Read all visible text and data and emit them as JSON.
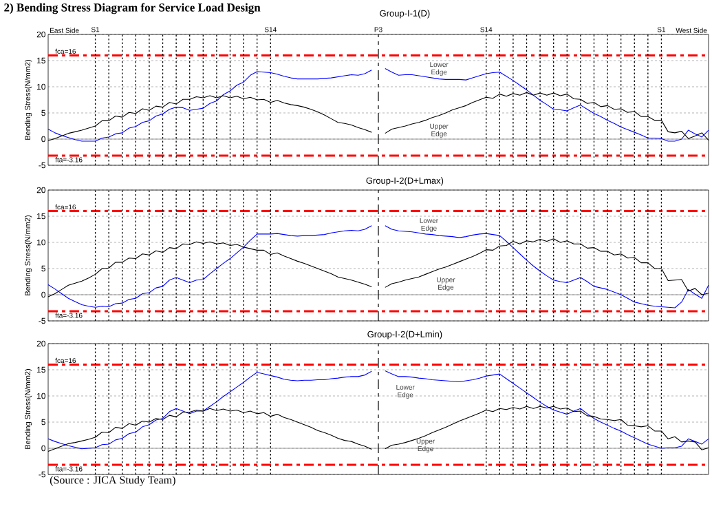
{
  "chart_data": [
    {
      "type": "line",
      "title": "2) Bending Stress Diagram for Service Load Design",
      "subtitle": "Group-I-1(D)",
      "ylabel": "Bending Stress(N/mm2)",
      "ylim": [
        -5,
        20
      ],
      "yticks": [
        -5,
        0,
        5,
        10,
        15,
        20
      ],
      "grid": true,
      "categories": [
        null,
        null,
        null,
        null,
        null,
        null,
        null,
        "S1",
        null,
        null,
        null,
        null,
        null,
        null,
        null,
        null,
        null,
        null,
        null,
        null,
        null,
        null,
        null,
        null,
        null,
        null,
        null,
        null,
        null,
        null,
        null,
        null,
        null,
        "S14",
        null,
        null,
        null,
        null,
        null,
        null,
        null,
        null,
        null,
        null,
        null,
        null,
        null,
        null,
        null,
        "P3",
        null,
        null,
        null,
        null,
        null,
        null,
        null,
        null,
        null,
        null,
        null,
        null,
        null,
        null,
        null,
        "S14",
        null,
        null,
        null,
        null,
        null,
        null,
        null,
        null,
        null,
        null,
        null,
        null,
        null,
        null,
        null,
        null,
        null,
        null,
        null,
        null,
        null,
        null,
        null,
        null,
        null,
        "S1",
        null,
        null,
        null,
        null,
        null,
        null,
        null
      ],
      "annotations": [
        "East Side",
        "West Side"
      ],
      "series": [
        {
          "name": "Lower Edge",
          "color": "#0000ff",
          "values": [
            1.9,
            1.2,
            0.7,
            0.3,
            -0.1,
            -0.4,
            -0.4,
            -0.4,
            0.2,
            0.4,
            1.0,
            1.2,
            2.1,
            2.4,
            3.2,
            3.5,
            4.4,
            4.8,
            5.7,
            6.1,
            6.0,
            5.5,
            5.7,
            5.9,
            6.8,
            7.3,
            8.5,
            9.2,
            10.3,
            10.9,
            12.2,
            12.9,
            12.8,
            12.7,
            12.4,
            12.0,
            11.7,
            11.5,
            11.5,
            11.5,
            11.5,
            11.6,
            11.7,
            11.9,
            12.1,
            12.3,
            12.2,
            12.5,
            13.2,
            null,
            13.5,
            12.8,
            12.2,
            12.3,
            12.3,
            12.1,
            11.9,
            11.7,
            11.5,
            11.4,
            11.4,
            11.4,
            11.3,
            11.7,
            12.1,
            12.5,
            12.7,
            12.8,
            12.0,
            11.2,
            10.3,
            9.4,
            8.4,
            7.4,
            6.6,
            5.7,
            5.6,
            5.4,
            6.0,
            6.5,
            5.7,
            4.9,
            4.3,
            3.6,
            3.0,
            2.3,
            1.8,
            1.3,
            0.8,
            0.2,
            0.2,
            0.1,
            -0.4,
            -0.4,
            0.0,
            1.7,
            1.0,
            0.4,
            1.7
          ]
        },
        {
          "name": "Upper Edge",
          "color": "#000000",
          "values": [
            -0.3,
            0.1,
            0.6,
            1.1,
            1.4,
            1.7,
            2.1,
            2.5,
            3.5,
            3.5,
            4.4,
            4.2,
            5.1,
            4.9,
            5.8,
            5.5,
            6.3,
            6.1,
            7.0,
            6.7,
            7.6,
            7.6,
            8.1,
            7.9,
            8.3,
            7.9,
            8.3,
            7.9,
            8.2,
            7.7,
            8.0,
            7.5,
            7.6,
            7.0,
            7.4,
            6.9,
            6.6,
            6.4,
            6.1,
            5.7,
            5.2,
            4.6,
            3.9,
            3.2,
            3.0,
            2.7,
            2.2,
            1.8,
            1.3,
            null,
            1.1,
            1.9,
            2.2,
            2.5,
            2.9,
            3.2,
            3.6,
            4.1,
            4.5,
            5.0,
            5.6,
            6.0,
            6.4,
            7.0,
            7.5,
            8.0,
            7.8,
            8.6,
            8.2,
            8.7,
            8.4,
            8.9,
            8.4,
            8.8,
            8.4,
            8.8,
            8.3,
            8.6,
            7.7,
            7.6,
            6.8,
            7.0,
            6.2,
            6.4,
            5.7,
            5.8,
            5.1,
            5.3,
            4.3,
            4.3,
            3.6,
            3.6,
            1.4,
            1.2,
            1.5,
            0.1,
            0.6,
            1.2,
            -0.2
          ]
        }
      ],
      "ref_lines": [
        {
          "axis": "y",
          "value": 16,
          "label": "fca=16",
          "color": "#ff0000",
          "line_style": "dashed"
        },
        {
          "axis": "y",
          "value": -3.16,
          "label": "fta=-3.16",
          "color": "#ff0000",
          "line_style": "dashed"
        },
        {
          "axis": "y",
          "value": 0,
          "color": "#808080",
          "line_style": "solid"
        }
      ]
    },
    {
      "type": "line",
      "title": "Group-I-2(D+Lmax)",
      "ylabel": "Bending Stress(N/mm2)",
      "ylim": [
        -5,
        20
      ],
      "yticks": [
        -5,
        0,
        5,
        10,
        15,
        20
      ],
      "tick_labels": "y",
      "grid": true,
      "categories": [
        null,
        null,
        null,
        null,
        null,
        null,
        null,
        null,
        null,
        null,
        null,
        null,
        null,
        null,
        null,
        null,
        null,
        null,
        null,
        null,
        null,
        null,
        null,
        null,
        null,
        null,
        null,
        null,
        null,
        null,
        null,
        null,
        null,
        null,
        null,
        null,
        null,
        null,
        null,
        null,
        null,
        null,
        null,
        null,
        null,
        null,
        null,
        null,
        null,
        null,
        null,
        null,
        null,
        null,
        null,
        null,
        null,
        null,
        null,
        null,
        null,
        null,
        null,
        null,
        null,
        null,
        null,
        null,
        null,
        null,
        null,
        null,
        null,
        null,
        null,
        null,
        null,
        null,
        null,
        null,
        null,
        null,
        null,
        null,
        null,
        null,
        null,
        null,
        null,
        null,
        null,
        null,
        null,
        null,
        null,
        null,
        null,
        null,
        null
      ],
      "series": [
        {
          "name": "Lower Edge",
          "color": "#0000ff",
          "values": [
            1.9,
            1.1,
            0.2,
            -0.7,
            -1.3,
            -1.9,
            -2.2,
            -2.4,
            -2.2,
            -2.3,
            -1.7,
            -1.6,
            -0.9,
            -0.7,
            0.2,
            0.4,
            1.3,
            1.6,
            2.8,
            3.3,
            2.8,
            2.3,
            2.8,
            2.9,
            4.0,
            5.0,
            6.0,
            6.9,
            8.0,
            9.1,
            10.4,
            11.6,
            11.6,
            11.6,
            11.7,
            11.5,
            11.3,
            11.2,
            11.3,
            11.3,
            11.4,
            11.5,
            11.8,
            12.0,
            12.2,
            12.3,
            12.2,
            12.5,
            13.2,
            null,
            13.2,
            12.5,
            12.2,
            12.1,
            12.0,
            11.8,
            11.6,
            11.5,
            11.3,
            11.2,
            11.1,
            10.9,
            11.1,
            11.4,
            11.6,
            11.7,
            11.5,
            11.3,
            10.2,
            9.0,
            7.8,
            6.6,
            5.5,
            4.5,
            3.6,
            2.8,
            2.5,
            2.3,
            2.8,
            3.3,
            2.5,
            1.6,
            1.3,
            1.0,
            0.5,
            0.0,
            -0.7,
            -1.4,
            -1.7,
            -2.0,
            -2.2,
            -2.3,
            -2.4,
            -2.5,
            -1.4,
            1.0,
            0.1,
            -0.7,
            1.8
          ]
        },
        {
          "name": "Upper Edge",
          "color": "#000000",
          "values": [
            -0.4,
            0.2,
            1.0,
            1.8,
            2.2,
            2.6,
            3.2,
            3.9,
            5.0,
            5.1,
            6.2,
            6.2,
            7.0,
            6.9,
            7.8,
            7.6,
            8.4,
            8.1,
            9.0,
            8.8,
            9.7,
            9.6,
            10.1,
            9.8,
            10.1,
            9.7,
            9.9,
            9.4,
            9.6,
            9.1,
            8.8,
            8.5,
            8.5,
            7.7,
            8.0,
            7.4,
            6.9,
            6.4,
            6.0,
            5.5,
            5.0,
            4.5,
            4.0,
            3.4,
            3.1,
            2.8,
            2.4,
            2.0,
            1.5,
            null,
            1.4,
            2.1,
            2.4,
            2.8,
            3.1,
            3.4,
            3.9,
            4.4,
            4.9,
            5.3,
            5.8,
            6.3,
            6.8,
            7.3,
            7.9,
            8.6,
            8.5,
            9.3,
            9.4,
            10.2,
            9.7,
            10.3,
            10.1,
            10.6,
            10.2,
            10.7,
            10.0,
            10.3,
            9.7,
            9.7,
            8.9,
            9.0,
            8.3,
            8.3,
            7.6,
            7.8,
            7.0,
            7.1,
            6.1,
            6.1,
            5.0,
            5.0,
            2.7,
            2.8,
            2.9,
            0.7,
            1.2,
            0.0,
            0.3
          ]
        }
      ],
      "ref_lines": [
        {
          "axis": "y",
          "value": 16,
          "label": "fca=16",
          "color": "#ff0000",
          "line_style": "dashed"
        },
        {
          "axis": "y",
          "value": -3.16,
          "label": "fta=-3.16",
          "color": "#ff0000",
          "line_style": "dashed"
        },
        {
          "axis": "y",
          "value": 0,
          "color": "#808080",
          "line_style": "solid"
        }
      ]
    },
    {
      "type": "line",
      "title": "Group-I-2(D+Lmin)",
      "ylabel": "Bending Stress(N/mm2)",
      "ylim": [
        -5,
        20
      ],
      "yticks": [
        -5,
        0,
        5,
        10,
        15,
        20
      ],
      "tick_labels": "y",
      "grid": true,
      "categories": [
        null,
        null,
        null,
        null,
        null,
        null,
        null,
        null,
        null,
        null,
        null,
        null,
        null,
        null,
        null,
        null,
        null,
        null,
        null,
        null,
        null,
        null,
        null,
        null,
        null,
        null,
        null,
        null,
        null,
        null,
        null,
        null,
        null,
        null,
        null,
        null,
        null,
        null,
        null,
        null,
        null,
        null,
        null,
        null,
        null,
        null,
        null,
        null,
        null,
        null,
        null,
        null,
        null,
        null,
        null,
        null,
        null,
        null,
        null,
        null,
        null,
        null,
        null,
        null,
        null,
        null,
        null,
        null,
        null,
        null,
        null,
        null,
        null,
        null,
        null,
        null,
        null,
        null,
        null,
        null,
        null,
        null,
        null,
        null,
        null,
        null,
        null,
        null,
        null,
        null,
        null,
        null,
        null,
        null,
        null,
        null,
        null,
        null,
        null
      ],
      "annotations": [
        "(Source : JICA Study Team)"
      ],
      "series": [
        {
          "name": "Lower Edge",
          "color": "#0000ff",
          "values": [
            1.8,
            1.3,
            0.9,
            0.5,
            0.2,
            -0.1,
            0.0,
            0.1,
            0.7,
            0.8,
            1.6,
            1.9,
            2.8,
            3.1,
            4.1,
            4.5,
            5.4,
            5.7,
            7.0,
            7.6,
            7.1,
            6.6,
            7.1,
            7.1,
            8.0,
            8.9,
            9.9,
            10.8,
            11.7,
            12.6,
            13.6,
            14.5,
            14.2,
            13.9,
            13.6,
            13.2,
            13.0,
            12.9,
            13.0,
            13.0,
            13.1,
            13.1,
            13.3,
            13.4,
            13.6,
            13.7,
            13.7,
            14.0,
            14.7,
            null,
            14.8,
            14.2,
            13.7,
            13.7,
            13.6,
            13.4,
            13.3,
            13.1,
            13.0,
            12.9,
            12.8,
            12.7,
            12.9,
            13.1,
            13.4,
            13.8,
            14.0,
            14.2,
            13.3,
            12.4,
            11.5,
            10.6,
            9.7,
            8.8,
            8.0,
            7.3,
            6.9,
            6.5,
            7.1,
            7.6,
            6.6,
            5.7,
            5.0,
            4.4,
            3.8,
            3.3,
            2.6,
            2.0,
            1.4,
            0.8,
            0.4,
            0.0,
            0.1,
            0.1,
            0.4,
            1.8,
            1.3,
            0.8,
            1.8
          ]
        },
        {
          "name": "Upper Edge",
          "color": "#000000",
          "values": [
            -0.6,
            -0.1,
            0.4,
            0.9,
            1.1,
            1.4,
            1.7,
            2.1,
            3.1,
            3.0,
            4.0,
            3.8,
            4.7,
            4.4,
            5.2,
            5.0,
            5.7,
            5.5,
            6.3,
            6.0,
            6.9,
            6.9,
            7.3,
            7.1,
            7.6,
            7.2,
            7.5,
            7.1,
            7.3,
            6.8,
            7.1,
            6.6,
            6.8,
            6.1,
            6.5,
            5.9,
            5.5,
            5.0,
            4.5,
            4.0,
            3.4,
            3.0,
            2.5,
            1.9,
            1.5,
            1.3,
            0.8,
            0.4,
            -0.2,
            null,
            -0.1,
            0.6,
            0.8,
            1.1,
            1.5,
            1.9,
            2.4,
            3.0,
            3.5,
            4.0,
            4.6,
            5.2,
            5.7,
            6.2,
            6.7,
            7.3,
            7.0,
            7.6,
            7.4,
            7.8,
            7.5,
            8.0,
            7.6,
            8.0,
            7.7,
            8.0,
            7.5,
            7.7,
            7.0,
            7.1,
            6.2,
            6.1,
            5.6,
            5.5,
            5.3,
            5.5,
            4.4,
            4.3,
            4.1,
            4.3,
            3.3,
            3.3,
            1.8,
            2.2,
            1.2,
            1.4,
            1.2,
            -0.3,
            0.1
          ]
        }
      ],
      "ref_lines": [
        {
          "axis": "y",
          "value": 16,
          "label": "fca=16",
          "color": "#ff0000",
          "line_style": "dashed"
        },
        {
          "axis": "y",
          "value": -3.16,
          "label": "fta=-3.16",
          "color": "#ff0000",
          "line_style": "dashed"
        },
        {
          "axis": "y",
          "value": 0,
          "color": "#808080",
          "line_style": "solid"
        }
      ]
    }
  ]
}
